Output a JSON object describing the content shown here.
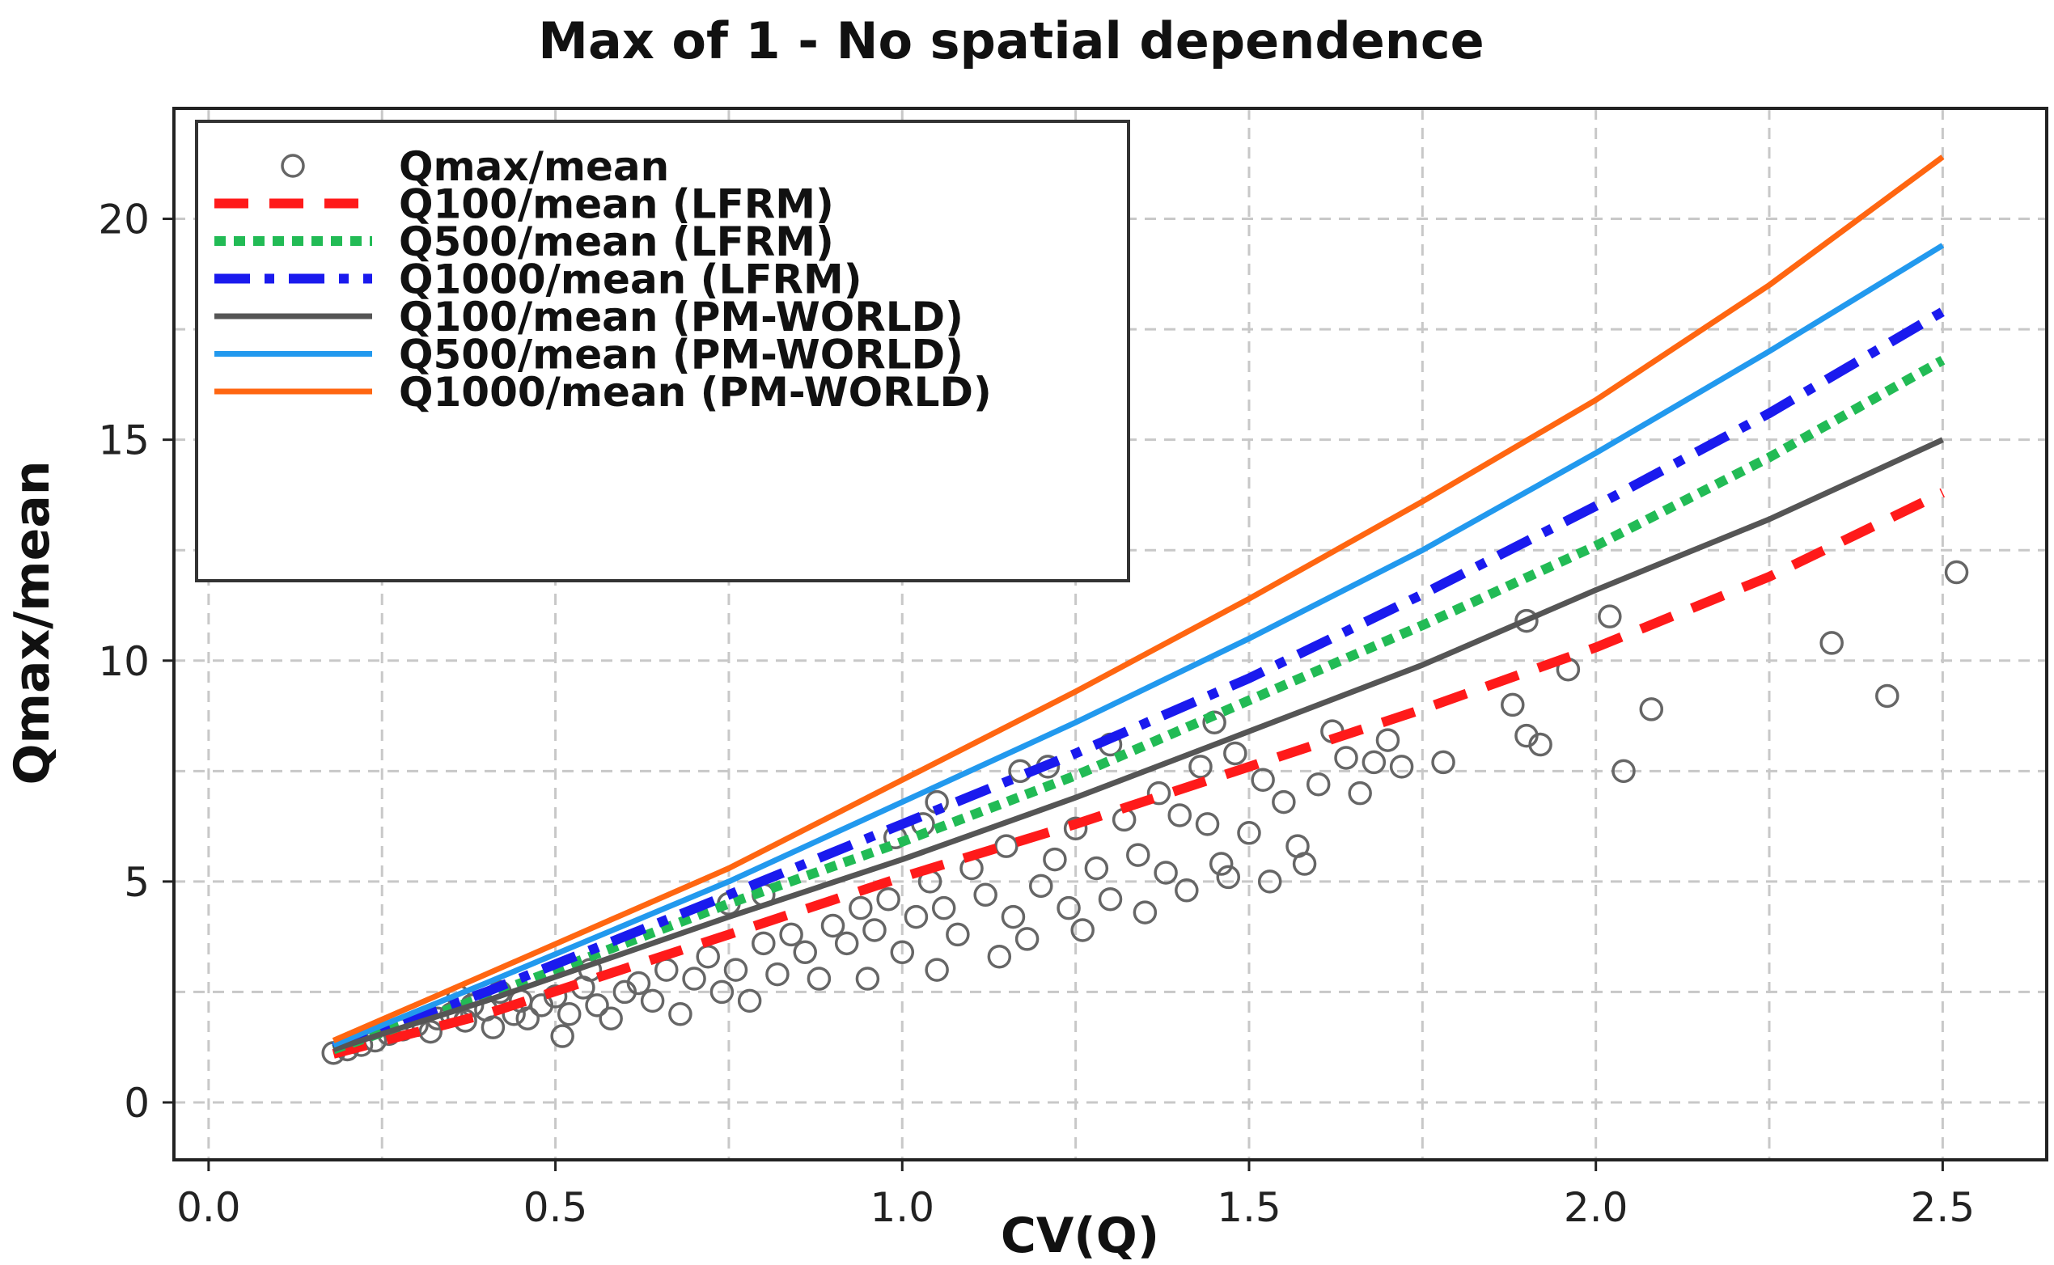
{
  "chart_data": {
    "type": "scatter",
    "title": "Max of 1 - No spatial dependence",
    "xlabel": "CV(Q)",
    "ylabel": "Qmax/mean",
    "xlim": [
      -0.05,
      2.65
    ],
    "ylim": [
      -1.3,
      22.5
    ],
    "xticks": [
      0.0,
      0.5,
      1.0,
      1.5,
      2.0,
      2.5
    ],
    "xtick_labels": [
      "0.0",
      "0.5",
      "1.0",
      "1.5",
      "2.0",
      "2.5"
    ],
    "yticks": [
      0,
      5,
      10,
      15,
      20
    ],
    "ytick_labels": [
      "0",
      "5",
      "10",
      "15",
      "20"
    ],
    "grid": true,
    "legend_position": "top-left",
    "series": [
      {
        "name": "Qmax/mean",
        "kind": "scatter",
        "color": "#666666",
        "points": [
          [
            0.18,
            1.12
          ],
          [
            0.2,
            1.2
          ],
          [
            0.22,
            1.3
          ],
          [
            0.24,
            1.4
          ],
          [
            0.26,
            1.55
          ],
          [
            0.28,
            1.65
          ],
          [
            0.3,
            1.75
          ],
          [
            0.32,
            1.6
          ],
          [
            0.33,
            1.9
          ],
          [
            0.35,
            2.0
          ],
          [
            0.36,
            2.4
          ],
          [
            0.37,
            1.85
          ],
          [
            0.38,
            2.2
          ],
          [
            0.4,
            2.1
          ],
          [
            0.41,
            1.7
          ],
          [
            0.42,
            2.5
          ],
          [
            0.44,
            2.0
          ],
          [
            0.45,
            2.3
          ],
          [
            0.46,
            1.9
          ],
          [
            0.48,
            2.2
          ],
          [
            0.5,
            2.4
          ],
          [
            0.51,
            1.5
          ],
          [
            0.52,
            2.0
          ],
          [
            0.54,
            2.6
          ],
          [
            0.55,
            3.0
          ],
          [
            0.56,
            2.2
          ],
          [
            0.58,
            1.9
          ],
          [
            0.6,
            2.5
          ],
          [
            0.62,
            2.7
          ],
          [
            0.64,
            2.3
          ],
          [
            0.66,
            3.0
          ],
          [
            0.68,
            2.0
          ],
          [
            0.7,
            2.8
          ],
          [
            0.72,
            3.3
          ],
          [
            0.74,
            2.5
          ],
          [
            0.75,
            4.5
          ],
          [
            0.76,
            3.0
          ],
          [
            0.78,
            2.3
          ],
          [
            0.8,
            3.6
          ],
          [
            0.8,
            4.7
          ],
          [
            0.82,
            2.9
          ],
          [
            0.84,
            3.8
          ],
          [
            0.86,
            3.4
          ],
          [
            0.88,
            2.8
          ],
          [
            0.9,
            4.0
          ],
          [
            0.92,
            3.6
          ],
          [
            0.94,
            4.4
          ],
          [
            0.95,
            2.8
          ],
          [
            0.96,
            3.9
          ],
          [
            0.98,
            4.6
          ],
          [
            0.99,
            6.0
          ],
          [
            1.0,
            3.4
          ],
          [
            1.02,
            4.2
          ],
          [
            1.03,
            6.3
          ],
          [
            1.04,
            5.0
          ],
          [
            1.05,
            6.8
          ],
          [
            1.05,
            3.0
          ],
          [
            1.06,
            4.4
          ],
          [
            1.08,
            3.8
          ],
          [
            1.1,
            5.3
          ],
          [
            1.12,
            4.7
          ],
          [
            1.14,
            3.3
          ],
          [
            1.15,
            5.8
          ],
          [
            1.16,
            4.2
          ],
          [
            1.17,
            7.5
          ],
          [
            1.18,
            3.7
          ],
          [
            1.2,
            4.9
          ],
          [
            1.21,
            7.6
          ],
          [
            1.22,
            5.5
          ],
          [
            1.24,
            4.4
          ],
          [
            1.25,
            6.2
          ],
          [
            1.26,
            3.9
          ],
          [
            1.28,
            5.3
          ],
          [
            1.3,
            8.1
          ],
          [
            1.3,
            4.6
          ],
          [
            1.32,
            6.4
          ],
          [
            1.34,
            5.6
          ],
          [
            1.35,
            4.3
          ],
          [
            1.37,
            7.0
          ],
          [
            1.38,
            5.2
          ],
          [
            1.4,
            6.5
          ],
          [
            1.41,
            4.8
          ],
          [
            1.43,
            7.6
          ],
          [
            1.44,
            6.3
          ],
          [
            1.45,
            8.6
          ],
          [
            1.46,
            5.4
          ],
          [
            1.47,
            5.1
          ],
          [
            1.48,
            7.9
          ],
          [
            1.5,
            6.1
          ],
          [
            1.52,
            7.3
          ],
          [
            1.53,
            5.0
          ],
          [
            1.55,
            6.8
          ],
          [
            1.57,
            5.8
          ],
          [
            1.58,
            5.4
          ],
          [
            1.6,
            7.2
          ],
          [
            1.62,
            8.4
          ],
          [
            1.64,
            7.8
          ],
          [
            1.66,
            7.0
          ],
          [
            1.68,
            7.7
          ],
          [
            1.7,
            8.2
          ],
          [
            1.72,
            7.6
          ],
          [
            1.78,
            7.7
          ],
          [
            1.88,
            9.0
          ],
          [
            1.9,
            8.3
          ],
          [
            1.92,
            8.1
          ],
          [
            1.9,
            10.9
          ],
          [
            1.96,
            9.8
          ],
          [
            2.02,
            11.0
          ],
          [
            2.04,
            7.5
          ],
          [
            2.08,
            8.9
          ],
          [
            2.34,
            10.4
          ],
          [
            2.42,
            9.2
          ],
          [
            2.52,
            12.0
          ]
        ]
      },
      {
        "name": "Q100/mean (LFRM)",
        "kind": "line",
        "style": "dashed",
        "color": "#ff1a1a",
        "x": [
          0.18,
          0.4,
          0.75,
          1.0,
          1.25,
          1.5,
          1.75,
          2.0,
          2.25,
          2.5
        ],
        "y": [
          1.1,
          2.0,
          3.8,
          5.1,
          6.3,
          7.6,
          8.9,
          10.3,
          11.9,
          13.8
        ]
      },
      {
        "name": "Q500/mean (LFRM)",
        "kind": "line",
        "style": "dotted",
        "color": "#22bb55",
        "x": [
          0.18,
          0.4,
          0.75,
          1.0,
          1.25,
          1.5,
          1.75,
          2.0,
          2.25,
          2.5
        ],
        "y": [
          1.2,
          2.4,
          4.5,
          5.9,
          7.4,
          9.1,
          10.8,
          12.6,
          14.6,
          16.8
        ]
      },
      {
        "name": "Q1000/mean (LFRM)",
        "kind": "line",
        "style": "dashdot",
        "color": "#1a1aee",
        "x": [
          0.18,
          0.4,
          0.75,
          1.0,
          1.25,
          1.5,
          1.75,
          2.0,
          2.25,
          2.5
        ],
        "y": [
          1.25,
          2.5,
          4.7,
          6.3,
          7.9,
          9.6,
          11.5,
          13.5,
          15.6,
          17.9
        ]
      },
      {
        "name": "Q100/mean (PM-WORLD)",
        "kind": "line",
        "style": "solid",
        "color": "#555555",
        "x": [
          0.18,
          0.4,
          0.75,
          1.0,
          1.25,
          1.5,
          1.75,
          2.0,
          2.25,
          2.5
        ],
        "y": [
          1.2,
          2.3,
          4.2,
          5.5,
          6.9,
          8.4,
          9.9,
          11.6,
          13.2,
          15.0
        ]
      },
      {
        "name": "Q500/mean (PM-WORLD)",
        "kind": "line",
        "style": "solid",
        "color": "#2299ee",
        "x": [
          0.18,
          0.4,
          0.75,
          1.0,
          1.25,
          1.5,
          1.75,
          2.0,
          2.25,
          2.5
        ],
        "y": [
          1.3,
          2.7,
          5.0,
          6.8,
          8.6,
          10.5,
          12.5,
          14.7,
          17.0,
          19.4
        ]
      },
      {
        "name": "Q1000/mean (PM-WORLD)",
        "kind": "line",
        "style": "solid",
        "color": "#ff6611",
        "x": [
          0.18,
          0.4,
          0.75,
          1.0,
          1.25,
          1.5,
          1.75,
          2.0,
          2.25,
          2.5
        ],
        "y": [
          1.4,
          2.9,
          5.3,
          7.3,
          9.3,
          11.4,
          13.6,
          15.9,
          18.5,
          21.4
        ]
      }
    ]
  }
}
